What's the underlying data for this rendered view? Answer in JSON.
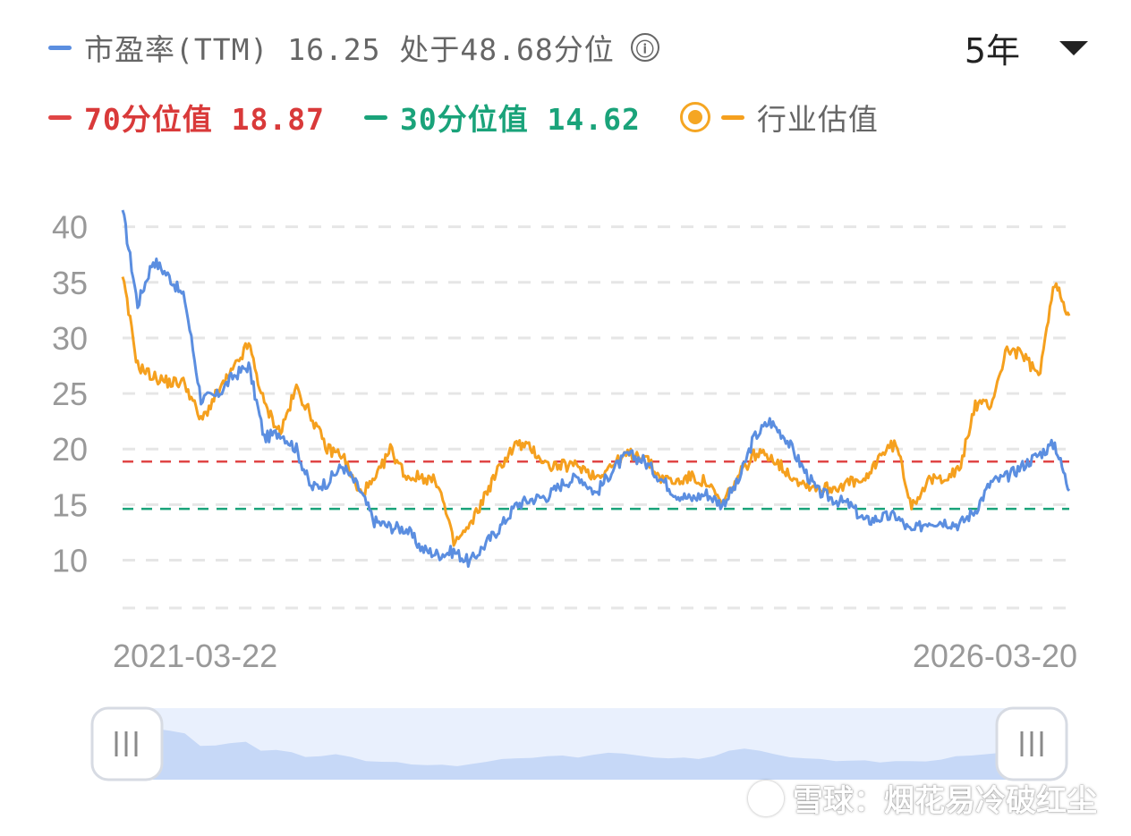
{
  "legend": {
    "pe_label": "市盈率(TTM) 16.25  处于48.68分位",
    "p70_label": "70分位值 18.87",
    "p30_label": "30分位值 14.62",
    "industry_label": "行业估值",
    "info_icon": "ⓘ"
  },
  "period_selector": {
    "value": "5年"
  },
  "watermark": {
    "text": "雪球：烟花易冷破红尘"
  },
  "colors": {
    "pe": "#5b8ee0",
    "industry": "#f5a01e",
    "p70": "#e04545",
    "p30": "#1aa37a",
    "axis_text": "#999999",
    "grid": "#e6e6e6",
    "navigator_fill": "#c6d8f7",
    "navigator_bg": "#e9f0fd"
  },
  "chart_data": {
    "type": "line",
    "x_start_label": "2021-03-22",
    "x_end_label": "2026-03-20",
    "yticks": [
      10,
      15,
      20,
      25,
      30,
      35,
      40
    ],
    "ylim": [
      5.7,
      41.5
    ],
    "grid": true,
    "reference_lines": [
      {
        "name": "70分位值",
        "value": 18.87
      },
      {
        "name": "30分位值",
        "value": 14.62
      }
    ],
    "x_dates": [
      "2021-03-22",
      "2021-04-20",
      "2021-05-20",
      "2021-06-20",
      "2021-07-20",
      "2021-08-20",
      "2021-09-20",
      "2021-10-20",
      "2021-11-20",
      "2021-12-20",
      "2022-01-20",
      "2022-02-20",
      "2022-03-20",
      "2022-04-20",
      "2022-05-20",
      "2022-06-20",
      "2022-07-20",
      "2022-08-20",
      "2022-09-20",
      "2022-10-20",
      "2022-11-20",
      "2022-12-20",
      "2023-01-20",
      "2023-02-20",
      "2023-03-20",
      "2023-04-20",
      "2023-05-20",
      "2023-06-20",
      "2023-07-20",
      "2023-08-20",
      "2023-09-20",
      "2023-10-20",
      "2023-11-20",
      "2023-12-20",
      "2024-01-20",
      "2024-02-20",
      "2024-03-20",
      "2024-04-20",
      "2024-05-20",
      "2024-06-20",
      "2024-07-20",
      "2024-08-20",
      "2024-09-20",
      "2024-10-20",
      "2024-11-20",
      "2024-12-20",
      "2025-01-20",
      "2025-02-20",
      "2025-03-20",
      "2025-04-20",
      "2025-05-20",
      "2025-06-20",
      "2025-07-20",
      "2025-08-20",
      "2025-09-20",
      "2025-10-20",
      "2025-11-20",
      "2025-12-20",
      "2026-01-20",
      "2026-02-20",
      "2026-03-20"
    ],
    "series": [
      {
        "name": "市盈率(TTM)",
        "values": [
          41.5,
          33,
          37,
          35.5,
          33.5,
          24.5,
          24.8,
          26.5,
          27.5,
          21,
          21.5,
          20,
          16.5,
          17,
          18.5,
          16.5,
          13.5,
          13,
          12.8,
          11,
          10.5,
          10.8,
          9.8,
          11.5,
          13,
          15,
          15.5,
          15.8,
          17,
          17.5,
          16,
          18,
          19.5,
          19,
          17.5,
          16,
          15.5,
          16,
          15,
          17,
          21,
          22.5,
          21,
          18.5,
          16.2,
          15.5,
          15,
          13.5,
          13.8,
          14,
          12.5,
          13.5,
          13.5,
          13.2,
          14.5,
          17,
          17.5,
          18.5,
          19.5,
          20.5,
          16.25
        ]
      },
      {
        "name": "行业估值",
        "values": [
          35.5,
          27.5,
          26.5,
          26,
          26,
          22.5,
          25,
          27,
          29.5,
          24,
          21.5,
          25.5,
          23,
          20,
          19.5,
          16,
          17,
          20,
          17.5,
          17.5,
          17,
          11.5,
          13,
          16,
          18.5,
          20.5,
          20,
          18.5,
          18.5,
          18.5,
          17.5,
          18.5,
          19.5,
          19.5,
          17.5,
          17,
          17.5,
          17,
          15,
          17.5,
          19.5,
          19.5,
          18,
          17,
          16.5,
          16.5,
          17,
          17,
          19.5,
          20.5,
          15,
          17,
          17.5,
          18,
          24,
          24,
          29,
          28.5,
          26.5,
          35,
          32
        ]
      }
    ]
  }
}
